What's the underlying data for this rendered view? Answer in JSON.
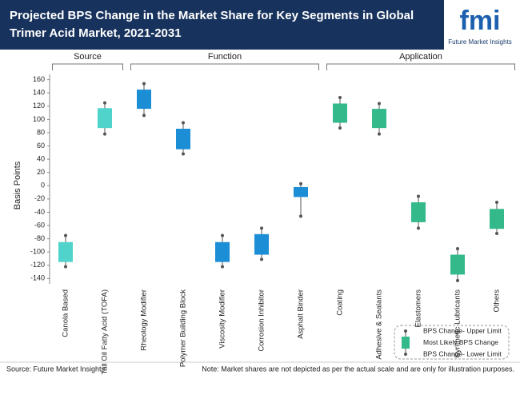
{
  "header": {
    "title_line1": "Projected BPS Change in the Market Share for Key Segments in Global",
    "title_line2": "Trimer Acid Market, 2021-2031",
    "logo": "fmi",
    "logo_caption": "Future Market Insights"
  },
  "chart_data": {
    "type": "floating-box",
    "y_label": "Basis Points",
    "ylim": [
      -148,
      168
    ],
    "yticks": [
      -140,
      -120,
      -100,
      -80,
      -60,
      -40,
      -20,
      0,
      20,
      40,
      60,
      80,
      100,
      120,
      140,
      160
    ],
    "series": [
      {
        "name": "Source",
        "color": "#4fd3cb",
        "categories": [
          "Canola Based",
          "Tall Oil Fatty Acid (TOFA)"
        ],
        "whisker_low": [
          -122,
          78
        ],
        "box_low": [
          -115,
          87
        ],
        "box_high": [
          -85,
          117
        ],
        "whisker_high": [
          -75,
          125
        ]
      },
      {
        "name": "Function",
        "color": "#1c8ed6",
        "categories": [
          "Rheology Modifier",
          "Polymer Building Block",
          "Viscosity Modifier",
          "Corrosion Inhibitor",
          "Asphalt Binder"
        ],
        "whisker_low": [
          106,
          48,
          -122,
          -111,
          -46
        ],
        "box_low": [
          116,
          55,
          -115,
          -104,
          -17
        ],
        "box_high": [
          145,
          86,
          -85,
          -73,
          -2
        ],
        "whisker_high": [
          154,
          95,
          -75,
          -64,
          3
        ]
      },
      {
        "name": "Application",
        "color": "#33b98a",
        "categories": [
          "Coating",
          "Adhesive & Sealants",
          "Elastomers",
          "Synthetic Lubricants",
          "Others"
        ],
        "whisker_low": [
          87,
          78,
          -64,
          -143,
          -72
        ],
        "box_low": [
          95,
          87,
          -55,
          -134,
          -65
        ],
        "box_high": [
          124,
          116,
          -25,
          -104,
          -35
        ],
        "whisker_high": [
          133,
          124,
          -16,
          -95,
          -25
        ]
      }
    ],
    "legend": [
      "BPS Change- Upper Limit",
      "Most Likely BPS Change",
      "BPS Change- Lower Limit"
    ]
  },
  "footer": {
    "source": "Source: Future Market Insights",
    "note": "Note: Market shares are not depicted as per the actual scale and are only for illustration purposes."
  }
}
